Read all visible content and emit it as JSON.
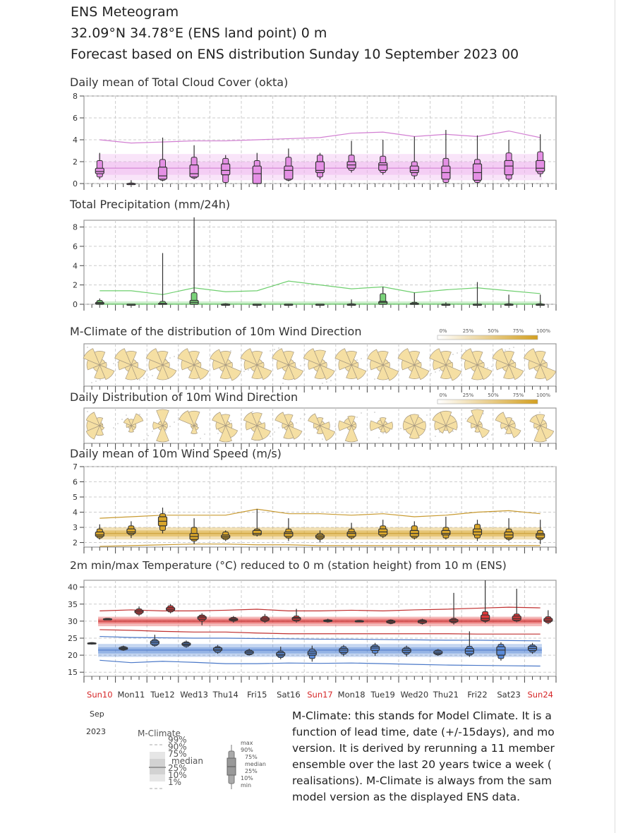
{
  "header": {
    "title": "ENS Meteogram",
    "location": " 32.09°N 34.78°E (ENS land point) 0 m",
    "forecast": "Forecast based on ENS distribution Sunday 10 September 2023 00"
  },
  "colors": {
    "cloud": "#e590e5",
    "cloud_band": "#eeb3ee",
    "precip": "#79d279",
    "wind": "#f5dfa3",
    "wind_speed": "#d9a62a",
    "tmax": "#e0393a",
    "tmin": "#5a8ad8",
    "sunday": "#d62728"
  },
  "x_axis": {
    "days": [
      "Sun10",
      "Mon11",
      "Tue12",
      "Wed13",
      "Thu14",
      "Fri15",
      "Sat16",
      "Sun17",
      "Mon18",
      "Tue19",
      "Wed20",
      "Thu21",
      "Fri22",
      "Sat23",
      "Sun24"
    ],
    "sundays": [
      0,
      7,
      14
    ],
    "month": "Sep",
    "year": "2023"
  },
  "rose_scale": {
    "labels": [
      "0%",
      "25%",
      "50%",
      "75%",
      "100%"
    ]
  },
  "legend": {
    "mclimate_title": "M-Climate",
    "mclimate_labels": [
      "99%",
      "90%",
      "75%",
      "median",
      "25%",
      "10%",
      "1%"
    ],
    "box_labels": [
      "max",
      "90%",
      "75%",
      "median",
      "25%",
      "10%",
      "min"
    ]
  },
  "description": [
    "M-Climate: this stands for Model Climate. It is a",
    "function of lead time, date (+/-15days), and mo",
    "version. It is derived by rerunning a 11 member",
    "ensemble over the last 20 years twice a week (",
    "realisations). M-Climate is always from the sam",
    "model version as the displayed ENS data."
  ],
  "chart_data": [
    {
      "id": "cloud",
      "type": "box",
      "title": "Daily mean of Total Cloud Cover (okta)",
      "ylim": [
        0,
        8
      ],
      "yticks": [
        0,
        2,
        4,
        6,
        8
      ],
      "grid": true,
      "box_quantiles": [
        "min",
        "10%",
        "25%",
        "median",
        "75%",
        "90%",
        "max"
      ],
      "boxes": [
        [
          0.4,
          0.6,
          0.9,
          1.1,
          1.4,
          2.1,
          2.8
        ],
        [
          0,
          0,
          0,
          0,
          0,
          0.05,
          0.3
        ],
        [
          0.2,
          0.3,
          0.4,
          0.7,
          1.5,
          2.2,
          4.2
        ],
        [
          0.4,
          0.5,
          0.6,
          0.9,
          1.7,
          2.4,
          3.5
        ],
        [
          0,
          0.1,
          0.8,
          1.2,
          1.8,
          2.3,
          2.6
        ],
        [
          0,
          0,
          0,
          0.9,
          1.6,
          2.1,
          2.8
        ],
        [
          0.2,
          0.3,
          0.4,
          1.2,
          1.6,
          2.4,
          3.2
        ],
        [
          0.4,
          0.6,
          1.0,
          1.2,
          2.0,
          2.6,
          2.8
        ],
        [
          1.0,
          1.2,
          1.4,
          1.7,
          2.0,
          2.6,
          3.9
        ],
        [
          0.8,
          1.0,
          1.2,
          1.7,
          1.9,
          2.5,
          4.0
        ],
        [
          0.4,
          0.7,
          1.0,
          1.2,
          1.6,
          2.0,
          4.3
        ],
        [
          0,
          0.1,
          0.4,
          1.0,
          1.6,
          2.3,
          4.9
        ],
        [
          0,
          0.1,
          0.3,
          1.0,
          1.8,
          2.2,
          4.4
        ],
        [
          0.2,
          0.4,
          0.8,
          1.6,
          2.1,
          2.8,
          4.0
        ],
        [
          0.6,
          0.9,
          1.1,
          1.4,
          2.1,
          2.9,
          4.5
        ]
      ],
      "mclimate": {
        "p1": 0,
        "p10": 0.3,
        "p25": 0.8,
        "median": 1.4,
        "p75": 2.0,
        "p90": 2.7,
        "p99": [
          4.0,
          3.7,
          3.8,
          3.9,
          3.9,
          4.0,
          4.1,
          4.2,
          4.6,
          4.7,
          4.3,
          4.5,
          4.3,
          4.8,
          4.2
        ]
      }
    },
    {
      "id": "precip",
      "type": "box",
      "title": "Total Precipitation (mm/24h)",
      "ylim": [
        0,
        8.7
      ],
      "yticks": [
        0,
        2,
        4,
        6,
        8
      ],
      "grid": true,
      "boxes": [
        [
          0,
          0,
          0,
          0.1,
          0.2,
          0.4,
          0.6
        ],
        [
          0,
          0,
          0,
          0,
          0,
          0,
          0
        ],
        [
          0,
          0,
          0,
          0,
          0.1,
          0.3,
          5.3
        ],
        [
          0,
          0,
          0,
          0.2,
          0.4,
          1.2,
          9
        ],
        [
          0,
          0,
          0,
          0,
          0,
          0.05,
          0.1
        ],
        [
          0,
          0,
          0,
          0,
          0,
          0,
          0
        ],
        [
          0,
          0,
          0,
          0,
          0,
          0,
          0.05
        ],
        [
          0,
          0,
          0,
          0,
          0,
          0,
          0
        ],
        [
          0,
          0,
          0,
          0,
          0,
          0.05,
          0.5
        ],
        [
          0,
          0,
          0,
          0.2,
          0.3,
          1.1,
          1.8
        ],
        [
          0,
          0,
          0,
          0,
          0.1,
          0.2,
          1.2
        ],
        [
          0,
          0,
          0,
          0,
          0,
          0,
          0.2
        ],
        [
          0,
          0,
          0,
          0,
          0,
          0,
          2.3
        ],
        [
          0,
          0,
          0,
          0,
          0,
          0.05,
          1.0
        ],
        [
          0,
          0,
          0,
          0,
          0,
          0.05,
          1.0
        ]
      ],
      "mclimate": {
        "p1": 0,
        "p10": 0,
        "p25": 0,
        "median": 0,
        "p75": 0.1,
        "p90": 0.3,
        "p99": [
          1.4,
          1.4,
          1.0,
          1.7,
          1.3,
          1.4,
          2.4,
          2.0,
          1.6,
          1.8,
          1.2,
          1.5,
          1.7,
          1.4,
          1.1
        ]
      }
    },
    {
      "id": "windclim",
      "type": "windrose",
      "title": "M-Climate of the distribution of 10m Wind Direction",
      "sector_order": [
        "N",
        "NE",
        "E",
        "SE",
        "S",
        "SW",
        "W",
        "NW"
      ],
      "roses": [
        [
          0.7,
          0.3,
          0.35,
          0.8,
          0.7,
          0.35,
          0.65,
          0.9
        ],
        [
          0.7,
          0.3,
          0.35,
          0.8,
          0.75,
          0.35,
          0.65,
          0.9
        ],
        [
          0.7,
          0.3,
          0.35,
          0.75,
          0.75,
          0.35,
          0.7,
          0.9
        ],
        [
          0.7,
          0.3,
          0.35,
          0.8,
          0.7,
          0.35,
          0.65,
          0.9
        ],
        [
          0.7,
          0.3,
          0.35,
          0.85,
          0.7,
          0.35,
          0.65,
          0.85
        ],
        [
          0.7,
          0.3,
          0.35,
          0.8,
          0.7,
          0.35,
          0.65,
          0.9
        ],
        [
          0.7,
          0.3,
          0.35,
          0.8,
          0.75,
          0.35,
          0.6,
          0.9
        ],
        [
          0.75,
          0.3,
          0.35,
          0.8,
          0.7,
          0.35,
          0.6,
          0.9
        ],
        [
          0.7,
          0.3,
          0.35,
          0.8,
          0.7,
          0.35,
          0.65,
          0.9
        ],
        [
          0.7,
          0.3,
          0.35,
          0.85,
          0.75,
          0.35,
          0.65,
          0.85
        ],
        [
          0.7,
          0.3,
          0.35,
          0.8,
          0.7,
          0.35,
          0.65,
          0.9
        ],
        [
          0.7,
          0.3,
          0.35,
          0.85,
          0.7,
          0.35,
          0.65,
          0.9
        ],
        [
          0.7,
          0.3,
          0.35,
          0.8,
          0.75,
          0.35,
          0.65,
          0.9
        ],
        [
          0.7,
          0.3,
          0.35,
          0.8,
          0.7,
          0.35,
          0.65,
          0.9
        ],
        [
          0.7,
          0.3,
          0.35,
          0.85,
          0.7,
          0.35,
          0.6,
          0.9
        ]
      ]
    },
    {
      "id": "winddaily",
      "type": "windrose",
      "title": "Daily Distribution of 10m Wind Direction",
      "sector_order": [
        "N",
        "NE",
        "E",
        "SE",
        "S",
        "SW",
        "W",
        "NW"
      ],
      "roses": [
        [
          0.5,
          0.2,
          0.2,
          0.3,
          0.6,
          0.9,
          0.8,
          0.9
        ],
        [
          0.4,
          0.8,
          0.3,
          0.3,
          0.4,
          0.2,
          0.3,
          0.5
        ],
        [
          1.0,
          0.3,
          0.3,
          0.3,
          1.0,
          0.3,
          0.6,
          0.3
        ],
        [
          0.9,
          0.2,
          0.2,
          0.3,
          0.5,
          0.2,
          0.2,
          1.0
        ],
        [
          0.7,
          0.3,
          0.4,
          0.8,
          1.0,
          0.5,
          0.6,
          0.9
        ],
        [
          0.8,
          0.3,
          0.5,
          0.9,
          0.9,
          0.4,
          0.7,
          0.9
        ],
        [
          0.7,
          0.3,
          0.3,
          0.9,
          0.8,
          0.3,
          0.4,
          0.9
        ],
        [
          0.5,
          0.3,
          0.6,
          1.0,
          0.5,
          0.3,
          0.4,
          0.8
        ],
        [
          0.6,
          0.3,
          0.3,
          0.3,
          1.0,
          0.3,
          0.8,
          0.5
        ],
        [
          0.5,
          0.3,
          0.6,
          0.5,
          0.4,
          0.3,
          0.8,
          0.4
        ],
        [
          0.7,
          0.6,
          0.7,
          0.7,
          0.8,
          0.6,
          0.7,
          0.7
        ],
        [
          0.9,
          0.7,
          0.7,
          0.5,
          0.3,
          0.5,
          0.7,
          0.9
        ],
        [
          1.0,
          0.3,
          0.3,
          0.8,
          0.4,
          0.2,
          0.4,
          0.7
        ],
        [
          0.5,
          0.4,
          0.4,
          0.8,
          0.5,
          0.3,
          0.5,
          0.9
        ],
        [
          0.7,
          0.4,
          0.4,
          0.9,
          1.0,
          0.3,
          0.4,
          0.7
        ]
      ]
    },
    {
      "id": "windspeed",
      "type": "box",
      "title": "Daily mean of 10m Wind Speed (m/s)",
      "ylim": [
        1.7,
        7
      ],
      "yticks": [
        2,
        3,
        4,
        5,
        6,
        7
      ],
      "grid": true,
      "boxes": [
        [
          2.2,
          2.3,
          2.4,
          2.5,
          2.7,
          2.9,
          3.2
        ],
        [
          2.3,
          2.5,
          2.6,
          2.7,
          2.9,
          3.1,
          3.4
        ],
        [
          2.6,
          2.8,
          3.1,
          3.4,
          3.7,
          3.9,
          4.3
        ],
        [
          1.9,
          2.1,
          2.2,
          2.4,
          2.6,
          3.0,
          3.6
        ],
        [
          2.1,
          2.2,
          2.3,
          2.4,
          2.5,
          2.7,
          2.8
        ],
        [
          2.4,
          2.5,
          2.5,
          2.6,
          2.8,
          2.9,
          4.2
        ],
        [
          2.1,
          2.3,
          2.4,
          2.6,
          2.7,
          2.9,
          3.6
        ],
        [
          2.0,
          2.2,
          2.3,
          2.4,
          2.5,
          2.6,
          2.8
        ],
        [
          2.2,
          2.3,
          2.4,
          2.6,
          2.7,
          2.9,
          3.3
        ],
        [
          2.3,
          2.4,
          2.5,
          2.7,
          2.9,
          3.1,
          3.5
        ],
        [
          2.2,
          2.3,
          2.4,
          2.6,
          2.8,
          3.1,
          3.4
        ],
        [
          2.2,
          2.3,
          2.5,
          2.6,
          2.8,
          3.0,
          3.7
        ],
        [
          2.1,
          2.3,
          2.5,
          2.7,
          2.9,
          3.2,
          3.5
        ],
        [
          2.1,
          2.2,
          2.3,
          2.5,
          2.7,
          2.9,
          3.6
        ],
        [
          1.9,
          2.2,
          2.3,
          2.5,
          2.6,
          2.8,
          3.5
        ]
      ],
      "mclimate": {
        "p10": 2.2,
        "p25": 2.4,
        "median": 2.6,
        "p75": 2.8,
        "p90": 3.0,
        "p99": [
          3.6,
          3.7,
          3.8,
          3.8,
          3.8,
          4.2,
          3.9,
          3.9,
          3.8,
          3.9,
          3.7,
          3.8,
          4.0,
          4.1,
          3.9
        ],
        "p1": [
          1.75,
          1.8,
          1.85,
          1.9,
          1.9,
          1.85,
          1.85,
          1.8,
          1.8,
          1.8,
          1.8,
          1.8,
          1.8,
          1.8,
          1.8
        ]
      }
    },
    {
      "id": "temperature",
      "type": "box",
      "title": "2m min/max Temperature (°C) reduced to 0 m (station height) from 10 m (ENS)",
      "ylim": [
        13.8,
        42
      ],
      "yticks": [
        15,
        20,
        25,
        30,
        35,
        40
      ],
      "grid": true,
      "tmax_boxes": [
        [
          30.3,
          30.4,
          30.5,
          30.6,
          30.7,
          30.8,
          30.9
        ],
        [
          31.5,
          32,
          32.4,
          32.8,
          33.2,
          33.6,
          34.3
        ],
        [
          32.3,
          32.7,
          33.1,
          33.5,
          34,
          34.5,
          35
        ],
        [
          28.8,
          30,
          30.5,
          31,
          31.4,
          31.8,
          32.3
        ],
        [
          29.6,
          30,
          30.2,
          30.5,
          30.8,
          31.1,
          31.5
        ],
        [
          29.5,
          29.9,
          30.2,
          30.6,
          31,
          31.4,
          32.1
        ],
        [
          29.6,
          30,
          30.3,
          30.8,
          31.1,
          31.5,
          33.6
        ],
        [
          29.6,
          29.8,
          29.9,
          30.1,
          30.3,
          30.4,
          30.7
        ],
        [
          29.7,
          29.8,
          29.9,
          30,
          30.1,
          30.2,
          30.3
        ],
        [
          29.1,
          29.3,
          29.5,
          29.8,
          30.1,
          30.3,
          30.5
        ],
        [
          29,
          29.3,
          29.5,
          29.9,
          30.2,
          30.4,
          30.7
        ],
        [
          29,
          29.5,
          29.8,
          30.1,
          30.5,
          30.8,
          38.3
        ],
        [
          29.5,
          29.9,
          30.2,
          30.8,
          31.8,
          32.8,
          42
        ],
        [
          29.7,
          30,
          30.3,
          30.8,
          31.5,
          32.1,
          39.5
        ],
        [
          29.1,
          29.5,
          29.9,
          30.3,
          30.8,
          31.3,
          33.2
        ]
      ],
      "tmin_boxes": [
        [
          23.1,
          23.3,
          23.4,
          23.5,
          23.6,
          23.7,
          23.8
        ],
        [
          21.3,
          21.5,
          21.7,
          22,
          22.3,
          22.5,
          22.8
        ],
        [
          22.5,
          22.8,
          23.2,
          23.7,
          24.2,
          24.6,
          26
        ],
        [
          22.2,
          22.5,
          22.9,
          23.2,
          23.6,
          23.9,
          24.3
        ],
        [
          20.4,
          20.8,
          21.3,
          21.7,
          22.2,
          22.5,
          23
        ],
        [
          19.9,
          20.1,
          20.4,
          20.8,
          21.2,
          21.5,
          21.9
        ],
        [
          18.8,
          19.3,
          19.8,
          20.2,
          20.8,
          21.2,
          22.5
        ],
        [
          18.1,
          19,
          20,
          20.6,
          21.2,
          21.8,
          22.8
        ],
        [
          19.7,
          20.3,
          20.8,
          21.5,
          22,
          22.5,
          23
        ],
        [
          19.8,
          20.6,
          21.4,
          22.1,
          22.6,
          23,
          23.6
        ],
        [
          19.6,
          20.3,
          20.8,
          21.4,
          21.9,
          22.3,
          22.8
        ],
        [
          19.8,
          20.1,
          20.4,
          20.7,
          21.2,
          21.5,
          21.8
        ],
        [
          19.5,
          20,
          20.4,
          21.2,
          22,
          22.6,
          27
        ],
        [
          18.4,
          19,
          20,
          21.5,
          22.5,
          23.2,
          23.8
        ],
        [
          20.4,
          20.9,
          21.4,
          22,
          22.6,
          23,
          23.6
        ]
      ],
      "mclimate_max": {
        "p10": 28.5,
        "p25": 29.3,
        "median": 30.0,
        "p75": 30.7,
        "p90": 31.3,
        "p99": [
          33,
          33.3,
          33,
          33,
          33.2,
          33.5,
          33,
          33,
          33.2,
          33,
          33.3,
          33.5,
          33.8,
          34.1,
          33.9
        ],
        "p1": [
          27.5,
          27.3,
          27,
          26.8,
          26.8,
          26.5,
          26.3,
          26.3,
          26.3,
          26.3,
          26.3,
          26.3,
          26.2,
          26.2,
          26.2
        ]
      },
      "mclimate_min": {
        "p10": 19.5,
        "p25": 20.5,
        "median": 21.5,
        "p75": 22.3,
        "p90": 23.3,
        "p99": [
          25.5,
          25.2,
          25.1,
          25,
          25,
          24.9,
          24.8,
          24.7,
          24.7,
          24.6,
          24.5,
          24.4,
          24.4,
          24.3,
          24.2
        ],
        "p1": [
          18.5,
          17.8,
          18.2,
          17.9,
          17.5,
          17.5,
          17.7,
          17.6,
          17.7,
          17.5,
          17.3,
          17.1,
          17,
          16.9,
          16.8
        ]
      }
    }
  ]
}
